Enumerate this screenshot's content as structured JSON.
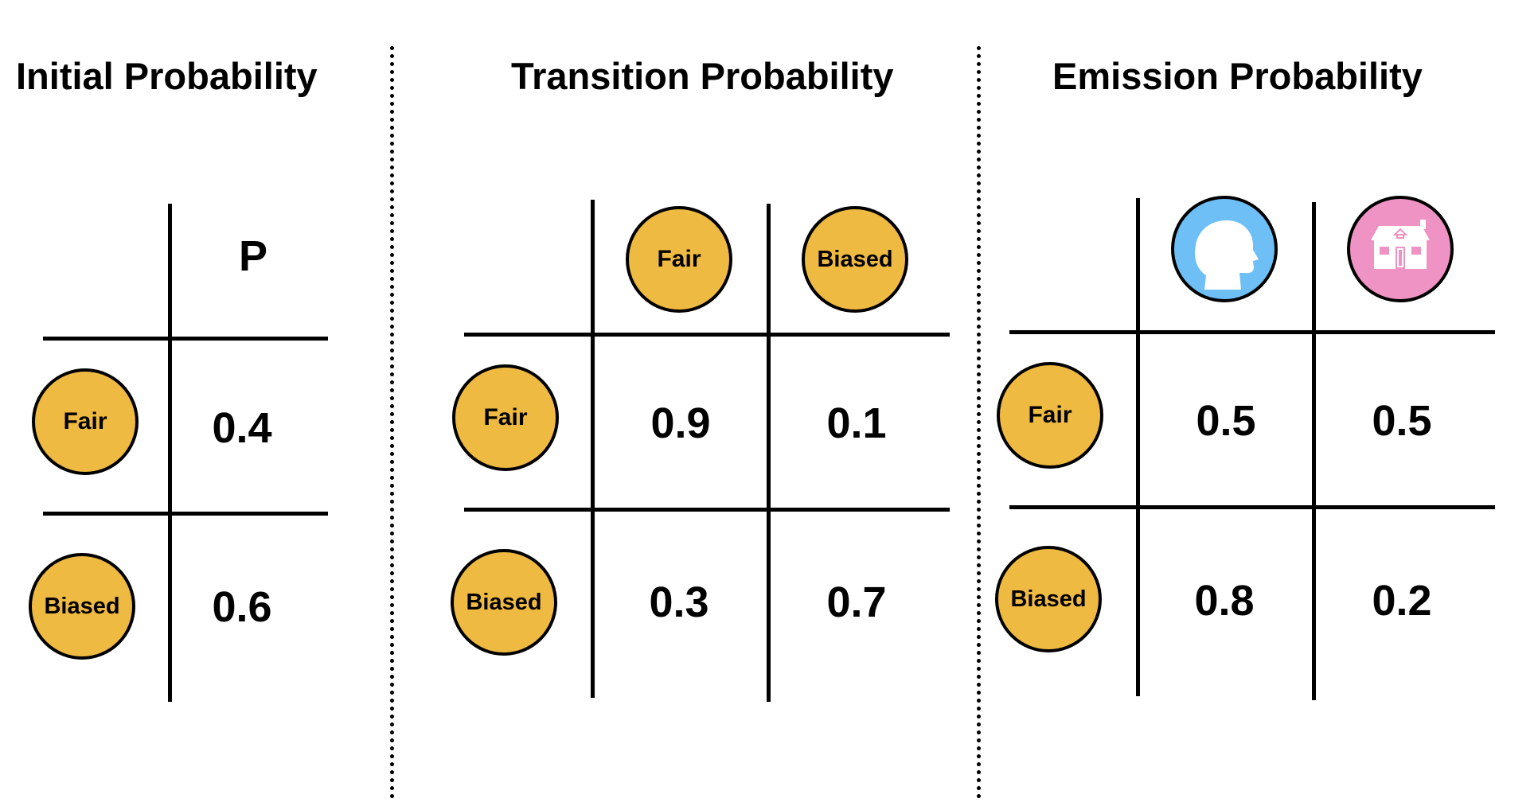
{
  "colors": {
    "coin": "#efba41",
    "person_icon_bg": "#6ebff5",
    "house_icon_bg": "#ef93c4",
    "line": "#000000"
  },
  "initial": {
    "title": "Initial Probability",
    "column_header": "P",
    "rows": [
      {
        "label": "Fair",
        "value": "0.4"
      },
      {
        "label": "Biased",
        "value": "0.6"
      }
    ]
  },
  "transition": {
    "title": "Transition Probability",
    "columns": [
      "Fair",
      "Biased"
    ],
    "rows": [
      {
        "label": "Fair",
        "values": [
          "0.9",
          "0.1"
        ]
      },
      {
        "label": "Biased",
        "values": [
          "0.3",
          "0.7"
        ]
      }
    ]
  },
  "emission": {
    "title": "Emission Probability",
    "column_icons": [
      "person-head-icon",
      "house-icon"
    ],
    "rows": [
      {
        "label": "Fair",
        "values": [
          "0.5",
          "0.5"
        ]
      },
      {
        "label": "Biased",
        "values": [
          "0.8",
          "0.2"
        ]
      }
    ]
  }
}
